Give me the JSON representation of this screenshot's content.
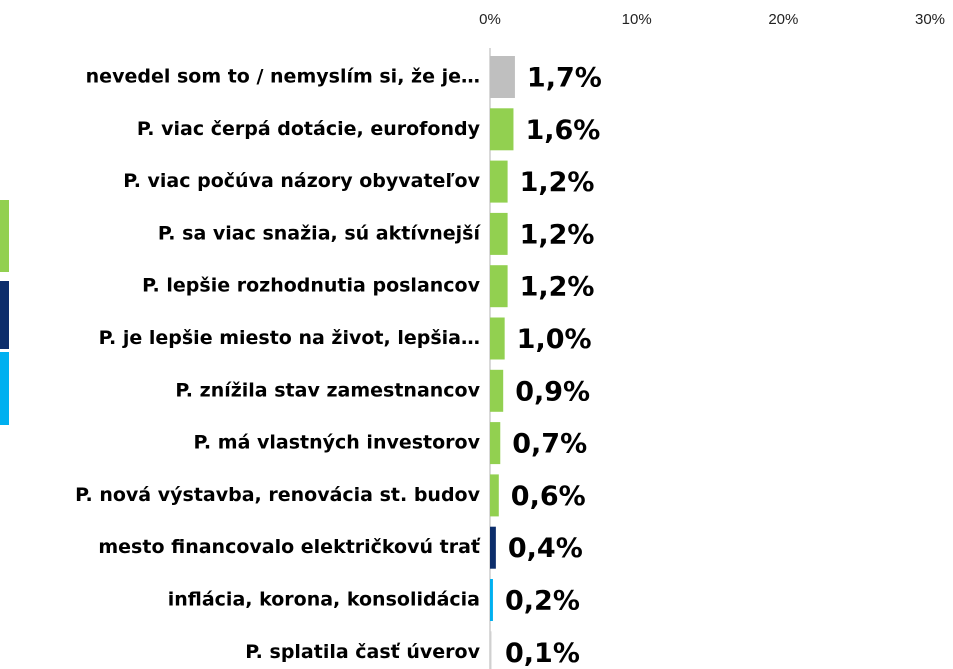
{
  "chart_data": {
    "type": "bar",
    "orientation": "horizontal",
    "categories": [
      "nevedel som to / nemyslím si, že je…",
      "P. viac čerpá dotácie, eurofondy",
      "P. viac počúva názory obyvateľov",
      "P. sa viac snažia, sú aktívnejší",
      "P. lepšie rozhodnutia poslancov",
      "P. je lepšie miesto na život, lepšia…",
      "P. znížila stav zamestnancov",
      "P. má vlastných investorov",
      "P. nová výstavba, renovácia st. budov",
      "mesto financovalo električkovú trať",
      "inflácia, korona, konsolidácia",
      "P. splatila časť úverov"
    ],
    "values": [
      1.7,
      1.6,
      1.2,
      1.2,
      1.2,
      1.0,
      0.9,
      0.7,
      0.6,
      0.4,
      0.2,
      0.1
    ],
    "value_labels": [
      "1,7%",
      "1,6%",
      "1,2%",
      "1,2%",
      "1,2%",
      "1,0%",
      "0,9%",
      "0,7%",
      "0,6%",
      "0,4%",
      "0,2%",
      "0,1%"
    ],
    "colors": [
      "#bfbfbf",
      "#92d050",
      "#92d050",
      "#92d050",
      "#92d050",
      "#92d050",
      "#92d050",
      "#92d050",
      "#92d050",
      "#0c2d6b",
      "#00b0f0",
      "#d0d0d0"
    ],
    "xlim": [
      0,
      30
    ],
    "xticks": [
      {
        "value": 0,
        "label": "0%"
      },
      {
        "value": 10,
        "label": "10%"
      },
      {
        "value": 20,
        "label": "20%"
      },
      {
        "value": 30,
        "label": "30%"
      }
    ]
  }
}
